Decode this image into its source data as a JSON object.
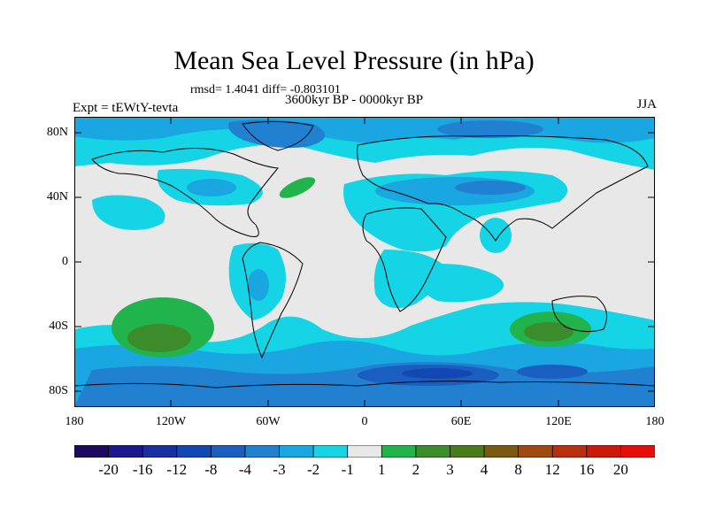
{
  "title": "Mean Sea Level Pressure (in hPa)",
  "stats": "rmsd= 1.4041 diff= -0.803101",
  "period": "3600kyr BP - 0000kyr BP",
  "experiment": "Expt = tEWtY-tevta",
  "season": "JJA",
  "lat_labels": [
    "80N",
    "40N",
    "0",
    "40S",
    "80S"
  ],
  "lon_labels": [
    "180",
    "120W",
    "60W",
    "0",
    "60E",
    "120E",
    "180"
  ],
  "colorbar": {
    "levels": [
      "-20",
      "-16",
      "-12",
      "-8",
      "-4",
      "-3",
      "-2",
      "-1",
      "1",
      "2",
      "3",
      "4",
      "8",
      "12",
      "16",
      "20"
    ],
    "colors": [
      "#1c0a5e",
      "#1a1a8c",
      "#1a2fa0",
      "#1446b4",
      "#1a5fc0",
      "#2280d0",
      "#1aa6e0",
      "#14d4e6",
      "#e8e8e8",
      "#22b44c",
      "#3c8c2c",
      "#4a7a1c",
      "#7a5a12",
      "#a04a12",
      "#b8300e",
      "#cc1a0a",
      "#e80c0c"
    ]
  },
  "map_colors": {
    "neutral": "#e8e8e8",
    "light_cyan": "#14d4e6",
    "cyan": "#1aa6e0",
    "mid_blue": "#2280d0",
    "blue": "#1a5fc0",
    "dark_blue": "#1446b4",
    "green": "#22b44c",
    "dark_green": "#3c8c2c"
  }
}
